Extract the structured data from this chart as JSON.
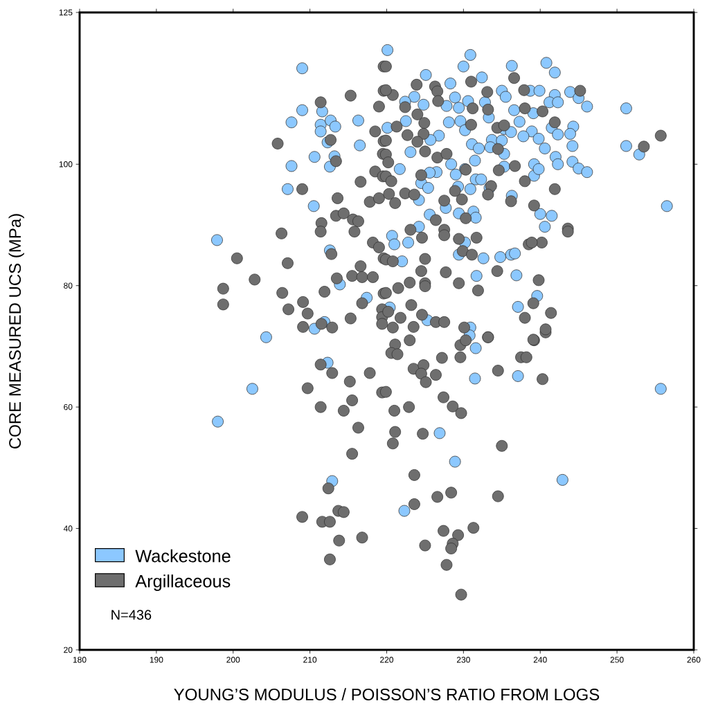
{
  "chart_data": {
    "type": "scatter",
    "xlabel": "YOUNG’S MODULUS / POISSON’S RATIO FROM LOGS",
    "ylabel": "CORE MEASURED UCS (MPa)",
    "xlim": [
      180,
      260
    ],
    "xticks": [
      180,
      190,
      200,
      210,
      220,
      230,
      240,
      250,
      260
    ],
    "ylim": [
      20,
      125
    ],
    "yticks": [
      20,
      40,
      60,
      80,
      100,
      125
    ],
    "grid": false,
    "legend": "bottom left",
    "marker": "circle",
    "annotations": [
      "N=436"
    ],
    "series": [
      {
        "name": "Wackestone",
        "color": "#8cc8ff",
        "x": [
          209.0,
          209.0,
          207.6,
          211.6,
          211.4,
          211.4,
          212.7,
          213.3,
          212.3,
          216.3,
          216.5,
          210.6,
          207.6,
          213.2,
          212.6,
          207.1,
          210.5,
          197.9,
          212.6,
          213.9,
          217.4,
          210.6,
          211.9,
          204.3,
          212.3,
          202.5,
          198.0,
          212.9,
          222.3,
          220.1,
          230.9,
          230.0,
          236.3,
          240.8,
          241.9,
          225.1,
          232.4,
          228.3,
          223.6,
          224.8,
          222.4,
          228.9,
          230.6,
          227.8,
          229.4,
          232.8,
          235.0,
          235.5,
          238.7,
          239.9,
          241.9,
          243.9,
          245.0,
          246.1,
          251.2,
          236.6,
          239.1,
          241.2,
          242.3,
          233.3,
          222.5,
          228.1,
          229.6,
          220.1,
          237.3,
          230.2,
          235.3,
          236.2,
          226.8,
          225.7,
          238.9,
          237.8,
          239.8,
          241.5,
          242.3,
          244.3,
          243.9,
          244.2,
          251.2,
          252.9,
          231.1,
          232.0,
          233.7,
          235.0,
          233.5,
          235.3,
          240.6,
          223.1,
          231.5,
          228.4,
          235.3,
          242.0,
          242.3,
          244.2,
          245.0,
          246.1,
          239.2,
          239.2,
          239.8,
          230.2,
          221.7,
          226.5,
          225.6,
          229.0,
          224.5,
          231.6,
          232.3,
          229.3,
          230.9,
          233.4,
          225.4,
          224.2,
          236.3,
          256.5,
          227.7,
          225.6,
          229.4,
          231.3,
          231.6,
          240.0,
          241.5,
          240.6,
          224.2,
          220.7,
          221.0,
          222.8,
          230.2,
          229.4,
          232.6,
          234.8,
          236.2,
          236.7,
          222.0,
          231.7,
          236.9,
          239.6,
          237.1,
          220.4,
          225.3,
          230.9,
          230.8,
          231.6,
          231.5,
          237.1,
          255.7,
          226.9,
          228.9,
          242.9
        ],
        "values": [
          115.8,
          108.9,
          106.9,
          108.7,
          106.5,
          105.4,
          107.2,
          106.2,
          103.6,
          107.2,
          103.1,
          101.2,
          99.7,
          101.3,
          99.6,
          95.9,
          93.1,
          87.5,
          85.8,
          80.2,
          78.0,
          72.9,
          74.0,
          71.5,
          67.3,
          63.0,
          57.6,
          47.8,
          42.9,
          118.8,
          118.0,
          116.1,
          116.2,
          116.7,
          115.1,
          114.7,
          114.3,
          113.3,
          111.1,
          109.8,
          110.3,
          111.0,
          110.4,
          109.6,
          109.3,
          110.2,
          112.1,
          111.1,
          112.1,
          112.1,
          111.4,
          111.9,
          110.9,
          109.5,
          109.2,
          108.9,
          108.4,
          110.2,
          110.2,
          107.7,
          107.1,
          106.9,
          107.1,
          106.0,
          107.0,
          105.6,
          105.8,
          105.3,
          104.7,
          104.0,
          105.4,
          104.6,
          104.2,
          106.0,
          104.9,
          106.2,
          105.0,
          103.0,
          103.0,
          101.6,
          103.3,
          102.6,
          104.0,
          103.9,
          102.8,
          101.7,
          102.6,
          102.0,
          100.6,
          100.0,
          99.6,
          101.2,
          100.0,
          100.4,
          99.3,
          98.7,
          100.0,
          98.1,
          99.2,
          99.2,
          99.2,
          98.7,
          98.6,
          98.3,
          96.9,
          97.5,
          97.5,
          96.3,
          95.9,
          96.1,
          96.1,
          94.1,
          94.8,
          93.1,
          92.8,
          91.7,
          91.9,
          92.2,
          91.2,
          91.8,
          91.5,
          89.7,
          89.7,
          88.2,
          86.8,
          87.1,
          87.1,
          85.1,
          84.5,
          84.7,
          85.1,
          85.3,
          84.0,
          81.6,
          81.7,
          78.3,
          76.5,
          76.4,
          74.3,
          73.1,
          71.8,
          69.7,
          64.7,
          65.1,
          63.0,
          55.7,
          51.0,
          48.0
        ]
      },
      {
        "name": "Argillaceous",
        "color": "#6e6e6e",
        "x": [
          215.3,
          211.4,
          219.0,
          219.6,
          219.6,
          218.5,
          205.8,
          212.7,
          213.4,
          219.6,
          219.5,
          218.5,
          219.5,
          216.6,
          209.0,
          213.6,
          217.8,
          219.0,
          213.4,
          214.4,
          215.6,
          216.3,
          215.8,
          211.5,
          211.4,
          206.3,
          218.2,
          219.0,
          219.6,
          212.8,
          200.5,
          207.1,
          202.8,
          216.6,
          215.5,
          216.8,
          218.2,
          213.5,
          198.7,
          198.7,
          206.4,
          211.9,
          219.6,
          209.1,
          207.2,
          209.7,
          216.8,
          215.3,
          219.4,
          219.4,
          219.4,
          209.1,
          211.5,
          212.9,
          211.4,
          212.9,
          215.2,
          217.8,
          209.7,
          215.5,
          211.4,
          214.4,
          219.4,
          216.3,
          215.5,
          212.4,
          209.0,
          211.6,
          212.6,
          213.7,
          214.4,
          213.8,
          216.8,
          212.6,
          223.0,
          221.1,
          220.6,
          221.4,
          229.6,
          230.3,
          233.2,
          239.2,
          240.7,
          227.2,
          229.6,
          237.5,
          238.2,
          223.5,
          224.8,
          224.5,
          226.4,
          225.1,
          234.5,
          240.3,
          219.9,
          227.4,
          228.6,
          229.7,
          222.9,
          221.0,
          221.1,
          220.8,
          224.7,
          235.0,
          223.6,
          228.4,
          226.6,
          234.5,
          223.6,
          227.4,
          229.3,
          231.3,
          228.6,
          228.4,
          225.0,
          227.8,
          229.7,
          219.9,
          236.6,
          231.0,
          223.9,
          226.3,
          226.6,
          226.7,
          220.8,
          219.9,
          233.1,
          237.9,
          245.2,
          222.4,
          224.0,
          231.2,
          233.2,
          238.0,
          240.3,
          224.9,
          231.0,
          241.9,
          221.3,
          234.4,
          235.3,
          222.7,
          224.8,
          219.9,
          224.0,
          255.7,
          253.5,
          225.0,
          226.6,
          227.8,
          234.5,
          219.9,
          220.2,
          236.7,
          234.6,
          230.3,
          219.9,
          220.6,
          224.5,
          238.0,
          241.9,
          228.9,
          222.4,
          223.6,
          233.6,
          229.8,
          220.3,
          233.2,
          236.2,
          239.2,
          221.1,
          227.5,
          226.4,
          230.3,
          223.1,
          224.6,
          227.5,
          227.5,
          229.4,
          231.7,
          243.6,
          243.6,
          238.5,
          240.2,
          238.9,
          219.9,
          220.8,
          225.0,
          229.9,
          231.1,
          224.5,
          227.7,
          234.4,
          229.4,
          231.9,
          239.8,
          223.0,
          225.0,
          221.5,
          225.0,
          219.9,
          223.2,
          239.1,
          241.4,
          238.0,
          240.7,
          220.2,
          221.8,
          224.6,
          226.4,
          227.5,
          223.5,
          220.8,
          230.1,
          233.2,
          239.1
        ],
        "values": [
          111.3,
          110.2,
          109.5,
          116.1,
          112.1,
          105.4,
          103.4,
          104.0,
          100.5,
          103.8,
          101.7,
          98.8,
          98.0,
          97.1,
          95.9,
          94.4,
          93.8,
          94.4,
          91.5,
          91.9,
          90.9,
          90.6,
          88.9,
          90.3,
          88.9,
          88.6,
          87.1,
          86.3,
          84.5,
          85.2,
          84.5,
          83.7,
          81.0,
          83.2,
          81.6,
          81.4,
          81.4,
          81.2,
          79.5,
          76.9,
          78.8,
          79.0,
          78.7,
          77.3,
          76.1,
          75.4,
          77.1,
          74.6,
          76.1,
          74.8,
          73.7,
          73.2,
          73.7,
          73.1,
          67.0,
          65.6,
          64.2,
          65.6,
          63.1,
          61.1,
          60.0,
          59.4,
          62.4,
          56.6,
          52.3,
          46.6,
          41.9,
          41.1,
          41.1,
          42.9,
          42.7,
          38.0,
          38.5,
          34.9,
          71.0,
          70.3,
          68.9,
          68.7,
          70.2,
          71.0,
          71.5,
          71.0,
          72.3,
          68.1,
          68.2,
          68.2,
          68.2,
          66.3,
          66.9,
          65.5,
          65.3,
          64.1,
          66.0,
          64.6,
          62.5,
          61.6,
          60.1,
          59.0,
          60.0,
          59.4,
          55.9,
          54.0,
          55.6,
          53.6,
          48.8,
          45.9,
          45.2,
          45.3,
          44.0,
          39.6,
          38.9,
          40.1,
          37.5,
          36.7,
          37.2,
          34.0,
          29.1,
          116.1,
          114.2,
          113.6,
          113.1,
          112.8,
          112.0,
          110.4,
          111.4,
          112.2,
          111.9,
          112.2,
          112.1,
          109.4,
          108.2,
          109.2,
          109.0,
          109.2,
          108.7,
          106.8,
          106.5,
          106.9,
          106.2,
          106.0,
          106.4,
          104.8,
          105.0,
          103.9,
          103.7,
          104.7,
          102.9,
          102.1,
          101.1,
          101.7,
          102.5,
          101.6,
          100.3,
          99.7,
          99.0,
          99.1,
          98.0,
          97.2,
          98.2,
          97.2,
          95.9,
          95.6,
          95.2,
          95.0,
          96.4,
          94.2,
          95.1,
          95.0,
          93.9,
          93.2,
          93.6,
          94.0,
          90.8,
          91.1,
          89.2,
          87.9,
          89.2,
          88.3,
          87.7,
          87.9,
          89.4,
          88.9,
          86.8,
          87.1,
          87.1,
          84.3,
          84.0,
          84.4,
          85.7,
          85.1,
          82.4,
          82.2,
          82.4,
          80.4,
          79.2,
          80.9,
          80.5,
          80.4,
          79.6,
          79.9,
          78.8,
          76.8,
          77.1,
          75.5,
          74.7,
          72.8,
          75.7,
          74.7,
          75.2,
          74.0,
          74.0,
          73.2,
          73.1,
          73.1,
          71.5,
          71.1
        ]
      }
    ]
  }
}
